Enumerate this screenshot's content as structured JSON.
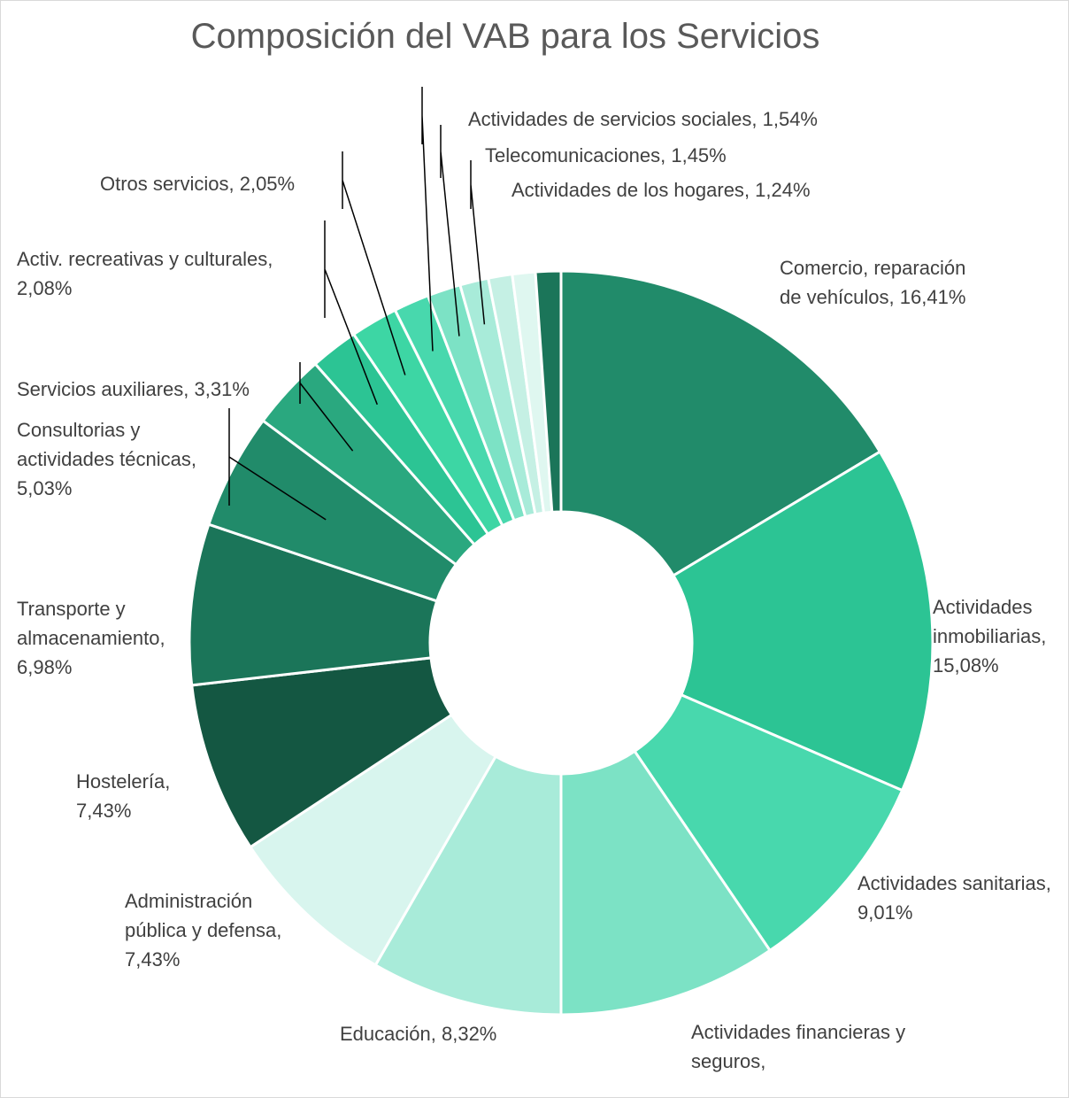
{
  "chart_data": {
    "type": "donut",
    "title": "Composición del VAB para los Servicios",
    "categories": [
      "Comercio, reparación de vehículos",
      "Actividades inmobiliarias",
      "Actividades sanitarias",
      "Actividades financieras y seguros",
      "Educación",
      "Administración pública y defensa",
      "Hostelería",
      "Transporte y almacenamiento",
      "Consultorias y actividades técnicas",
      "Servicios auxiliares",
      "Activ. recreativas y culturales",
      "Otros servicios",
      "Actividades de servicios sociales",
      "Telecomunicaciones",
      "Actividades de los hogares",
      null,
      null,
      null
    ],
    "values": [
      16.41,
      15.08,
      9.01,
      9.5,
      8.32,
      7.43,
      7.43,
      6.98,
      5.03,
      3.31,
      2.08,
      2.05,
      1.54,
      1.45,
      1.24,
      1.04,
      1.0,
      1.1
    ],
    "value_labels": [
      "16,41%",
      "15,08%",
      "9,01%",
      null,
      "8,32%",
      "7,43%",
      "7,43%",
      "6,98%",
      "5,03%",
      "3,31%",
      "2,08%",
      "2,05%",
      "1,54%",
      "1,45%",
      "1,24%",
      null,
      null,
      null
    ],
    "colors": [
      "#218b6a",
      "#2cc494",
      "#48d8ad",
      "#7ce2c5",
      "#a8ebd9",
      "#d8f5ee",
      "#145742",
      "#1b7559",
      "#218b6a",
      "#2aa87f",
      "#2cc494",
      "#3dd6a4",
      "#48d8ad",
      "#7ce2c5",
      "#a8ebd9",
      "#c5f0e4",
      "#dff7f0",
      "#1b7559"
    ]
  }
}
